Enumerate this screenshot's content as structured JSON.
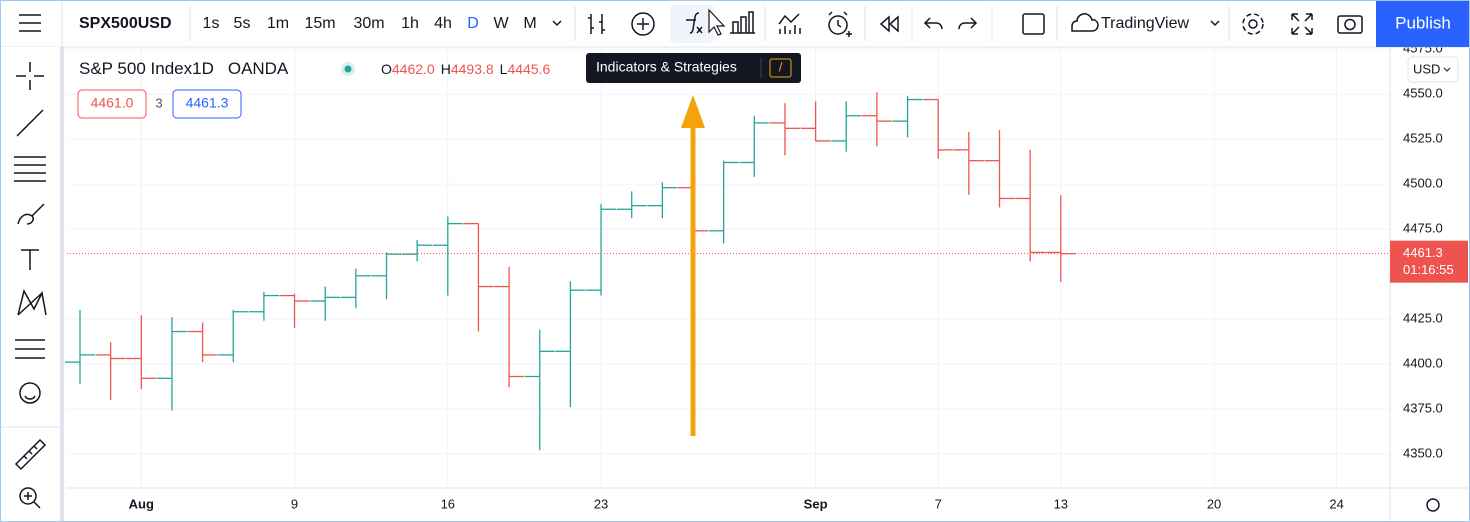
{
  "toolbar": {
    "symbol": "SPX500USD",
    "intervals": [
      "1s",
      "5s",
      "1m",
      "15m",
      "30m",
      "1h",
      "4h",
      "D",
      "W",
      "M"
    ],
    "layout_name": "TradingView",
    "publish": "Publish"
  },
  "tooltip": {
    "text": "Indicators & Strategies",
    "shortcut": "/"
  },
  "legend": {
    "title": "S&P 500 Index",
    "interval": "1D",
    "exchange": "OANDA",
    "open_label": "O",
    "open": "4462.0",
    "high_label": "H",
    "high": "4493.8",
    "low_label": "L",
    "low": "4445.6",
    "bid": "4461.0",
    "spread": "3",
    "ask": "4461.3"
  },
  "price_scale": {
    "currency": "USD"
  },
  "chart_data": {
    "type": "ohlc",
    "categories": [
      null,
      null,
      "Aug",
      null,
      null,
      null,
      null,
      "9",
      null,
      null,
      null,
      null,
      "16",
      null,
      null,
      null,
      null,
      "23",
      null,
      null,
      null,
      null,
      null,
      null,
      "Sep",
      null,
      null,
      null,
      "7",
      null,
      null,
      null,
      "13",
      null,
      null,
      null,
      null,
      "20",
      null,
      null,
      null,
      "24",
      null
    ],
    "open": [
      4401,
      4405,
      4403,
      4392,
      4418,
      4405,
      4429,
      4438,
      4435,
      4437,
      4449,
      4461,
      4466,
      4478,
      4443,
      4393,
      4407,
      4441,
      4486,
      4488,
      4498,
      4474,
      4512,
      4534,
      4531,
      4524,
      4538,
      4535,
      4547,
      4519,
      4513,
      4492,
      4462.0,
      null,
      null,
      null,
      null,
      null,
      null,
      null,
      null,
      null,
      null
    ],
    "high": [
      4430,
      4412,
      4427,
      4426,
      4423,
      4430,
      4440,
      4439,
      4443,
      4453,
      4462,
      4469,
      4482,
      4478,
      4454,
      4419,
      4446,
      4489,
      4496,
      4501,
      4498,
      4513,
      4538,
      4545,
      4546,
      4546,
      4551,
      4549,
      4547,
      4529,
      4530,
      4519,
      4493.8,
      null,
      null,
      null,
      null,
      null,
      null,
      null,
      null,
      null,
      null
    ],
    "low": [
      4389,
      4380,
      4386,
      4374,
      4401,
      4401,
      4424,
      4420,
      4424,
      4431,
      4436,
      4457,
      4438,
      4418,
      4387,
      4352,
      4376,
      4438,
      4481,
      4481,
      4467,
      4467,
      4504,
      4516,
      4524,
      4518,
      4521,
      4526,
      4514,
      4494,
      4487,
      4457,
      4445.6,
      null,
      null,
      null,
      null,
      null,
      null,
      null,
      null,
      null,
      null
    ],
    "close": [
      4405,
      4403,
      4392,
      4418,
      4405,
      4429,
      4438,
      4435,
      4437,
      4449,
      4461,
      4466,
      4478,
      4443,
      4393,
      4407,
      4441,
      4486,
      4488,
      4498,
      4474,
      4512,
      4534,
      4531,
      4524,
      4538,
      4535,
      4547,
      4519,
      4513,
      4492,
      4462,
      4461.3,
      null,
      null,
      null,
      null,
      null,
      null,
      null,
      null,
      null,
      null
    ],
    "up_color": "#26a69a",
    "down_color": "#ef5350",
    "ylim": [
      4331,
      4579
    ],
    "yticks": [
      {
        "value": 4350,
        "label": "4350.0"
      },
      {
        "value": 4375,
        "label": "4375.0"
      },
      {
        "value": 4400,
        "label": "4400.0"
      },
      {
        "value": 4425,
        "label": "4425.0"
      },
      {
        "value": 4475,
        "label": "4475.0"
      },
      {
        "value": 4500,
        "label": "4500.0"
      },
      {
        "value": 4525,
        "label": "4525.0"
      },
      {
        "value": 4550,
        "label": "4550.0"
      },
      {
        "value": 4575,
        "label": "4575.0"
      }
    ],
    "grid": true,
    "countdown": "01:16:55"
  }
}
